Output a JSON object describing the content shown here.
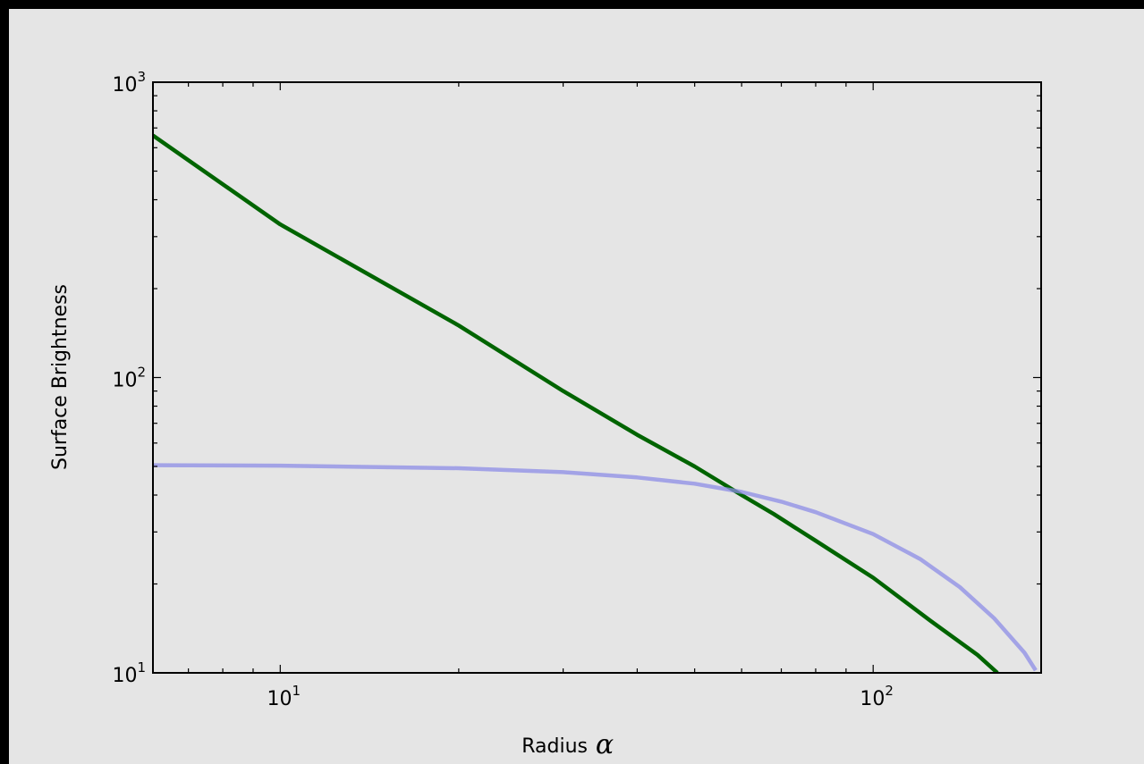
{
  "chart_data": {
    "type": "line",
    "title": "",
    "xlabel": "Radius",
    "xlabel_extra": "α",
    "ylabel": "Surface Brightness",
    "xscale": "log",
    "yscale": "log",
    "xlim": [
      6.1,
      192
    ],
    "ylim": [
      10,
      1000
    ],
    "grid": false,
    "x_ticks": [
      {
        "value": 10,
        "base": "10",
        "exp": "1"
      },
      {
        "value": 100,
        "base": "10",
        "exp": "2"
      }
    ],
    "y_ticks": [
      {
        "value": 10,
        "base": "10",
        "exp": "1"
      },
      {
        "value": 100,
        "base": "10",
        "exp": "2"
      },
      {
        "value": 1000,
        "base": "10",
        "exp": "3"
      }
    ],
    "series": [
      {
        "color": "#006400",
        "opacity": 1,
        "x": [
          6.1,
          10,
          20,
          30,
          40,
          50,
          60,
          68,
          80,
          100,
          125,
          150,
          162
        ],
        "y": [
          660,
          330,
          150,
          90,
          64,
          50,
          40,
          34.5,
          28,
          21,
          15,
          11.5,
          10
        ]
      },
      {
        "color": "#8c8ce6",
        "opacity": 0.75,
        "x": [
          6.1,
          10,
          20,
          30,
          40,
          50,
          60,
          70,
          80,
          100,
          120,
          140,
          160,
          180,
          188
        ],
        "y": [
          50.5,
          50.3,
          49.3,
          47.8,
          45.9,
          43.7,
          41.0,
          38.0,
          35.0,
          29.5,
          24.3,
          19.5,
          15.3,
          11.7,
          10.2
        ]
      }
    ]
  }
}
